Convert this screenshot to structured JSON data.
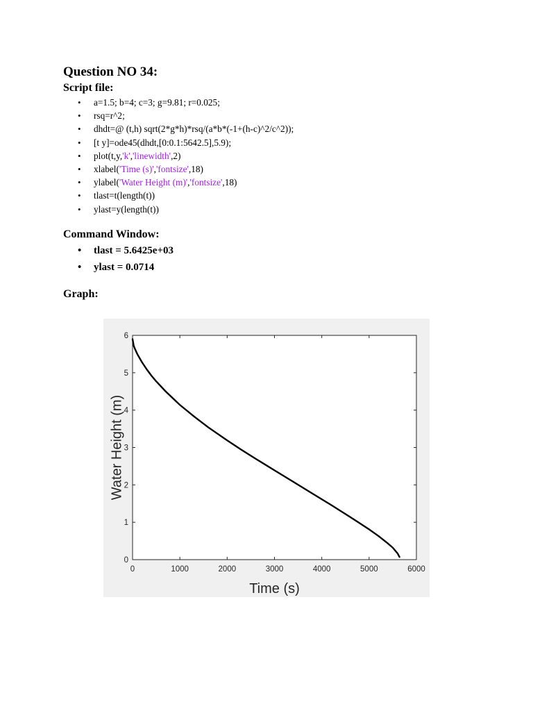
{
  "question_title": "Question NO 34:",
  "script_heading": "Script file:",
  "script_lines": [
    [
      {
        "t": "a=1.5; b=4; c=3; g=9.81; r=0.025;"
      }
    ],
    [
      {
        "t": "rsq=r^2;"
      }
    ],
    [
      {
        "t": "dhdt=@ (t,h) sqrt(2*g*h)*rsq/(a*b*(-1+(h-c)^2/c^2));"
      }
    ],
    [
      {
        "t": "[t y]=ode45(dhdt,[0:0.1:5642.5],5.9);"
      }
    ],
    [
      {
        "t": "plot(t,y,"
      },
      {
        "t": "'k'",
        "s": true
      },
      {
        "t": ","
      },
      {
        "t": "'linewidth'",
        "s": true
      },
      {
        "t": ",2)"
      }
    ],
    [
      {
        "t": "xlabel("
      },
      {
        "t": "'Time (s)'",
        "s": true
      },
      {
        "t": ","
      },
      {
        "t": "'fontsize'",
        "s": true
      },
      {
        "t": ",18)"
      }
    ],
    [
      {
        "t": "ylabel("
      },
      {
        "t": "'Water Height (m)'",
        "s": true
      },
      {
        "t": ","
      },
      {
        "t": "'fontsize'",
        "s": true
      },
      {
        "t": ",18)"
      }
    ],
    [
      {
        "t": "tlast=t(length(t))"
      }
    ],
    [
      {
        "t": "ylast=y(length(t))"
      }
    ]
  ],
  "command_heading": "Command Window:",
  "command_lines": [
    "tlast = 5.6425e+03",
    "ylast = 0.0714"
  ],
  "graph_heading": "Graph:",
  "colors": {
    "string_literal": "#a020f0",
    "line": "#000000"
  },
  "chart_data": {
    "type": "line",
    "title": "",
    "xlabel": "Time (s)",
    "ylabel": "Water Height (m)",
    "xlim": [
      0,
      6000
    ],
    "ylim": [
      0,
      6
    ],
    "xticks": [
      0,
      1000,
      2000,
      3000,
      4000,
      5000,
      6000
    ],
    "yticks": [
      0,
      1,
      2,
      3,
      4,
      5,
      6
    ],
    "grid": false,
    "series": [
      {
        "name": "y",
        "x": [
          0,
          25,
          50,
          100,
          200,
          300,
          400,
          500,
          700,
          1000,
          1300,
          1600,
          2000,
          2300,
          2600,
          3000,
          3400,
          3800,
          4200,
          4600,
          5000,
          5200,
          5400,
          5500,
          5600,
          5642.5
        ],
        "y": [
          5.9,
          5.72,
          5.64,
          5.5,
          5.28,
          5.09,
          4.92,
          4.77,
          4.5,
          4.14,
          3.83,
          3.54,
          3.19,
          2.94,
          2.7,
          2.39,
          2.08,
          1.77,
          1.46,
          1.14,
          0.81,
          0.63,
          0.43,
          0.32,
          0.17,
          0.0714
        ]
      }
    ]
  }
}
